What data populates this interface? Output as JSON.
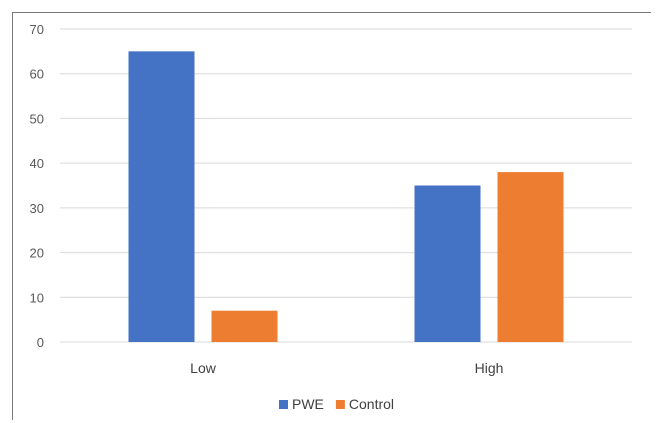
{
  "chart_data": {
    "type": "bar",
    "categories": [
      "Low",
      "High"
    ],
    "series": [
      {
        "name": "PWE",
        "values": [
          65,
          35
        ],
        "color": "#4472C4"
      },
      {
        "name": "Control",
        "values": [
          7,
          38
        ],
        "color": "#ED7D31"
      }
    ],
    "title": "",
    "xlabel": "",
    "ylabel": "",
    "ylim": [
      0,
      70
    ],
    "yticks": [
      0,
      10,
      20,
      30,
      40,
      50,
      60,
      70
    ],
    "grid": true,
    "legend": "bottom-center",
    "gridColor": "#D9D9D9"
  }
}
